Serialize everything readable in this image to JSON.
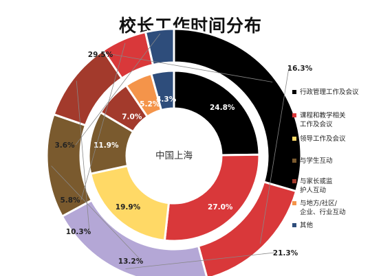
{
  "chart_data": {
    "type": "donut",
    "title": "校长工作时间分布",
    "center_label": "中国上海",
    "categories": [
      "行政管理工作及会议",
      "课程和教学相关工作及会议",
      "领导工作及会议",
      "与学生互动",
      "与家长或监护人互动",
      "与地方/社区/企业、行业互动",
      "其他"
    ],
    "legend_lines": [
      [
        "行政管理工作及会议"
      ],
      [
        "课程和教学相关",
        "工作及会议"
      ],
      [
        "领导工作及会议"
      ],
      [
        "与学生互动"
      ],
      [
        "与家长或监",
        "护人互动"
      ],
      [
        "与地方/社区/",
        "企业、行业互动"
      ],
      [
        "其他"
      ]
    ],
    "colors": [
      "#000000",
      "#d9383a",
      "#ffd966",
      "#7a5a2e",
      "#a33a2c",
      "#f4944a",
      "#2e4d7b"
    ],
    "series": [
      {
        "ring": "inner",
        "values": [
          24.8,
          27.0,
          19.9,
          11.9,
          7.0,
          5.2,
          4.3
        ],
        "labels": [
          "24.8%",
          "27.0%",
          "19.9%",
          "11.9%",
          "7.0%",
          "5.2%",
          "4.3%"
        ]
      },
      {
        "ring": "outer",
        "values": [
          29.5,
          16.3,
          21.3,
          13.2,
          10.3,
          5.8,
          3.6
        ],
        "labels": [
          "29.5%",
          "16.3%",
          "21.3%",
          "13.2%",
          "10.3%",
          "5.8%",
          "3.6%"
        ]
      }
    ],
    "outer_ring_colors": [
      "#000000",
      "#d9383a",
      "#b4a7d6",
      "#7a5a2e",
      "#a33a2c",
      "#d9383a",
      "#2e4d7b"
    ],
    "legend_placement": "right"
  }
}
